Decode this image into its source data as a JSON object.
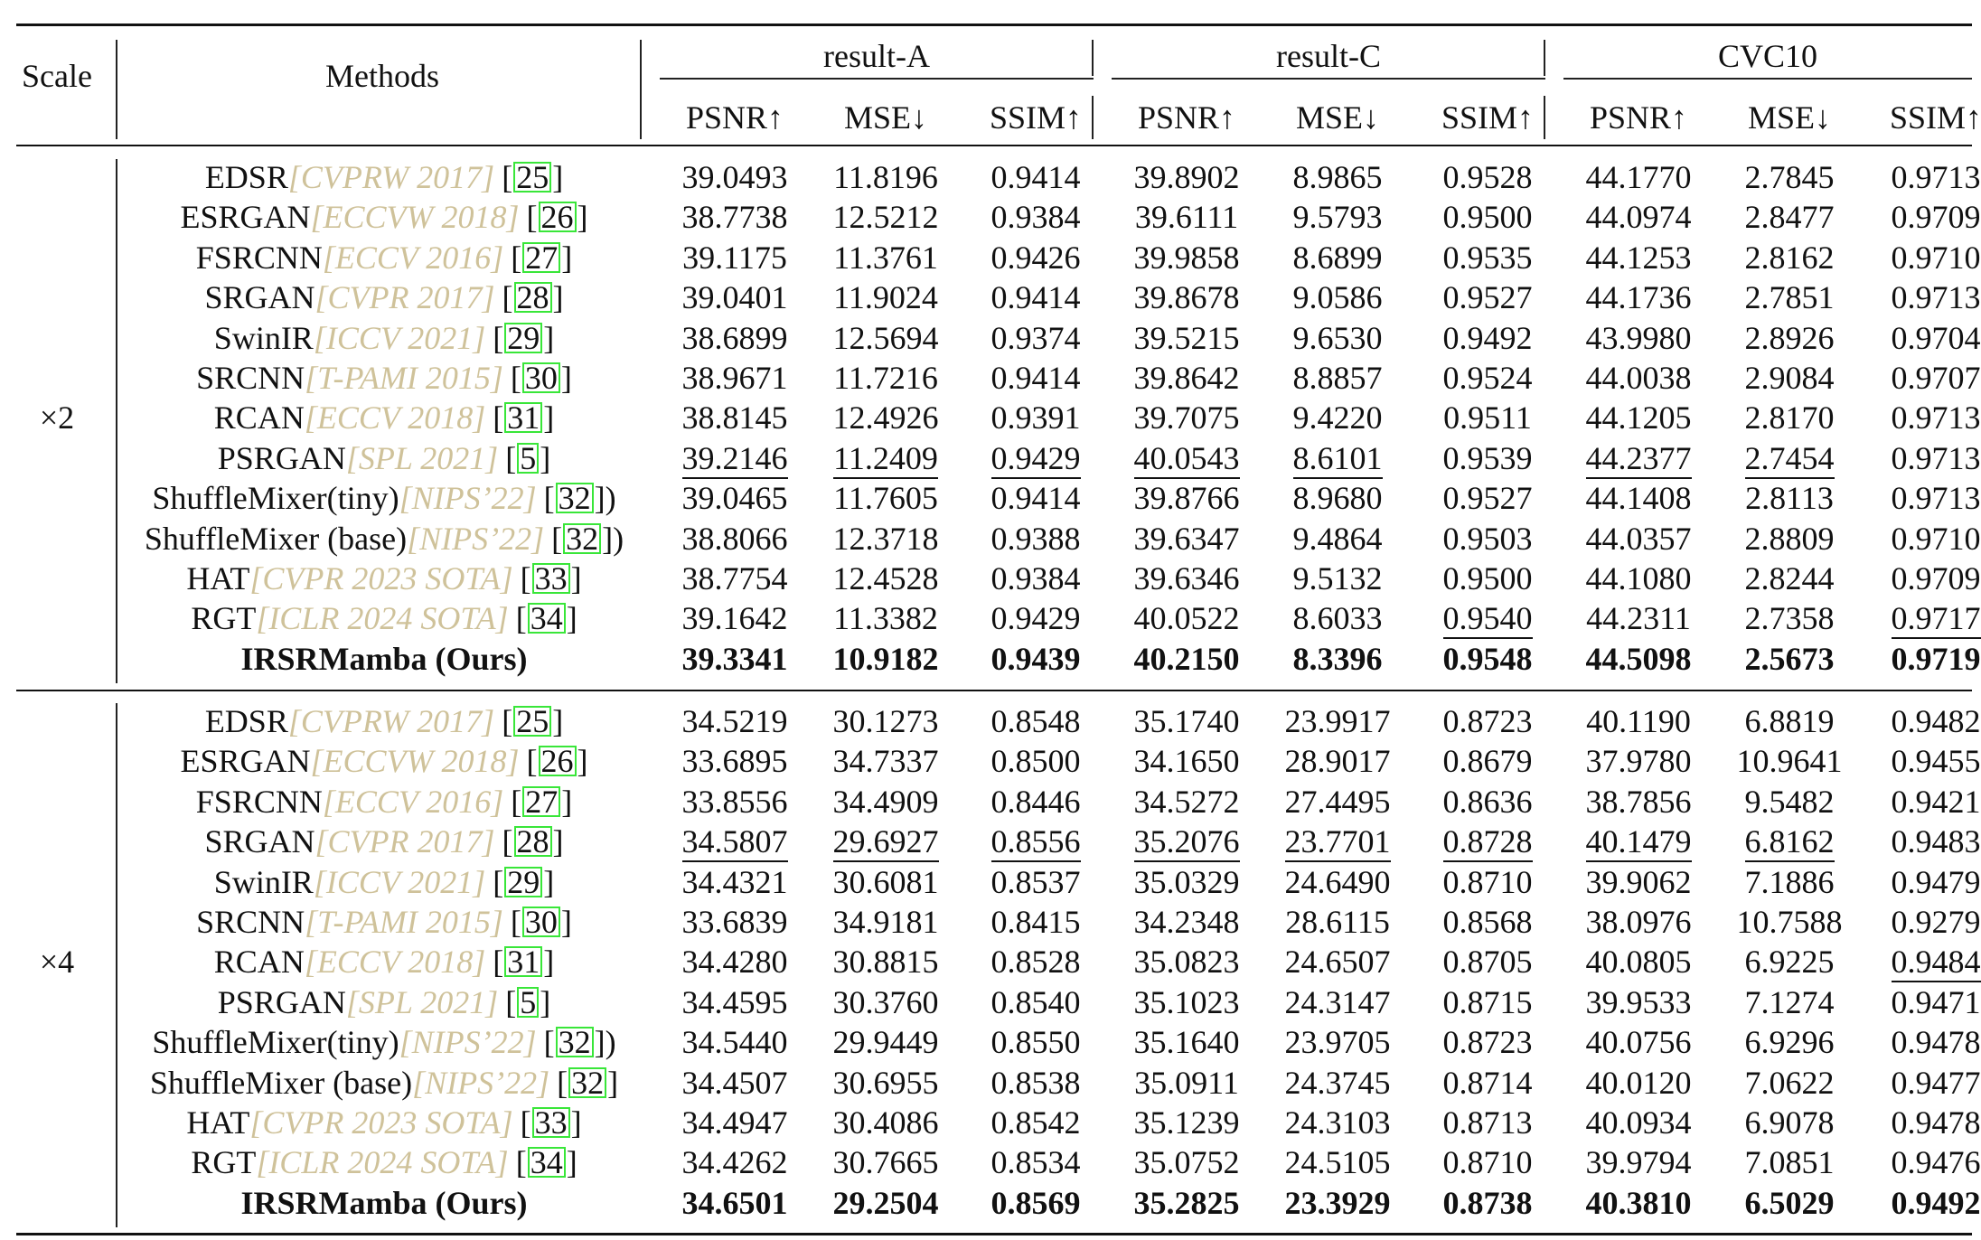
{
  "header": {
    "scale": "Scale",
    "methods": "Methods",
    "groups": [
      "result-A",
      "result-C",
      "CVC10"
    ],
    "metrics": [
      "PSNR↑",
      "MSE↓",
      "SSIM↑"
    ]
  },
  "sections": [
    {
      "scale": "×2",
      "rows": [
        {
          "name": "EDSR",
          "venue": "[CVPRW 2017]",
          "pre": "[",
          "ref": "25",
          "post": "]",
          "values": [
            "39.0493",
            "11.8196",
            "0.9414",
            "39.8902",
            "8.9865",
            "0.9528",
            "44.1770",
            "2.7845",
            "0.9713"
          ]
        },
        {
          "name": "ESRGAN",
          "venue": "[ECCVW 2018]",
          "pre": "[",
          "ref": "26",
          "post": "]",
          "values": [
            "38.7738",
            "12.5212",
            "0.9384",
            "39.6111",
            "9.5793",
            "0.9500",
            "44.0974",
            "2.8477",
            "0.9709"
          ]
        },
        {
          "name": "FSRCNN",
          "venue": "[ECCV 2016]",
          "pre": "[",
          "ref": "27",
          "post": "]",
          "values": [
            "39.1175",
            "11.3761",
            "0.9426",
            "39.9858",
            "8.6899",
            "0.9535",
            "44.1253",
            "2.8162",
            "0.9710"
          ]
        },
        {
          "name": "SRGAN",
          "venue": "[CVPR 2017]",
          "pre": "[",
          "ref": "28",
          "post": "]",
          "values": [
            "39.0401",
            "11.9024",
            "0.9414",
            "39.8678",
            "9.0586",
            "0.9527",
            "44.1736",
            "2.7851",
            "0.9713"
          ]
        },
        {
          "name": "SwinIR",
          "venue": "[ICCV 2021]",
          "pre": "[",
          "ref": "29",
          "post": "]",
          "values": [
            "38.6899",
            "12.5694",
            "0.9374",
            "39.5215",
            "9.6530",
            "0.9492",
            "43.9980",
            "2.8926",
            "0.9704"
          ]
        },
        {
          "name": "SRCNN",
          "venue": "[T-PAMI 2015]",
          "pre": "[",
          "ref": "30",
          "post": "]",
          "values": [
            "38.9671",
            "11.7216",
            "0.9414",
            "39.8642",
            "8.8857",
            "0.9524",
            "44.0038",
            "2.9084",
            "0.9707"
          ]
        },
        {
          "name": "RCAN",
          "venue": "[ECCV 2018]",
          "pre": "[",
          "ref": "31",
          "post": "]",
          "values": [
            "38.8145",
            "12.4926",
            "0.9391",
            "39.7075",
            "9.4220",
            "0.9511",
            "44.1205",
            "2.8170",
            "0.9713"
          ]
        },
        {
          "name": "PSRGAN",
          "venue": "[SPL 2021]",
          "pre": "[",
          "ref": "5",
          "post": "]",
          "values": [
            "39.2146",
            "11.2409",
            "0.9429",
            "40.0543",
            "8.6101",
            "0.9539",
            "44.2377",
            "2.7454",
            "0.9713"
          ]
        },
        {
          "name": "ShuffleMixer(tiny)",
          "venue": "[NIPS’22]",
          "pre": "[",
          "ref": "32",
          "post": "])",
          "values": [
            "39.0465",
            "11.7605",
            "0.9414",
            "39.8766",
            "8.9680",
            "0.9527",
            "44.1408",
            "2.8113",
            "0.9713"
          ]
        },
        {
          "name": "ShuffleMixer (base)",
          "venue": "[NIPS’22]",
          "pre": "[",
          "ref": "32",
          "post": "])",
          "values": [
            "38.8066",
            "12.3718",
            "0.9388",
            "39.6347",
            "9.4864",
            "0.9503",
            "44.0357",
            "2.8809",
            "0.9710"
          ]
        },
        {
          "name": "HAT",
          "venue": "[CVPR 2023 SOTA]",
          "pre": "[",
          "ref": "33",
          "post": "]",
          "values": [
            "38.7754",
            "12.4528",
            "0.9384",
            "39.6346",
            "9.5132",
            "0.9500",
            "44.1080",
            "2.8244",
            "0.9709"
          ]
        },
        {
          "name": "RGT",
          "venue": "[ICLR 2024 SOTA]",
          "pre": "[",
          "ref": "34",
          "post": "]",
          "values": [
            "39.1642",
            "11.3382",
            "0.9429",
            "40.0522",
            "8.6033",
            "0.9540",
            "44.2311",
            "2.7358",
            "0.9717"
          ]
        },
        {
          "name": "IRSRMamba (Ours)",
          "venue": "",
          "pre": "",
          "ref": "",
          "post": "",
          "values": [
            "39.3341",
            "10.9182",
            "0.9439",
            "40.2150",
            "8.3396",
            "0.9548",
            "44.5098",
            "2.5673",
            "0.9719"
          ]
        }
      ]
    },
    {
      "scale": "×4",
      "rows": [
        {
          "name": "EDSR",
          "venue": "[CVPRW 2017]",
          "pre": "[",
          "ref": "25",
          "post": "]",
          "values": [
            "34.5219",
            "30.1273",
            "0.8548",
            "35.1740",
            "23.9917",
            "0.8723",
            "40.1190",
            "6.8819",
            "0.9482"
          ]
        },
        {
          "name": "ESRGAN",
          "venue": "[ECCVW 2018]",
          "pre": "[",
          "ref": "26",
          "post": "]",
          "values": [
            "33.6895",
            "34.7337",
            "0.8500",
            "34.1650",
            "28.9017",
            "0.8679",
            "37.9780",
            "10.9641",
            "0.9455"
          ]
        },
        {
          "name": "FSRCNN",
          "venue": "[ECCV 2016]",
          "pre": "[",
          "ref": "27",
          "post": "]",
          "values": [
            "33.8556",
            "34.4909",
            "0.8446",
            "34.5272",
            "27.4495",
            "0.8636",
            "38.7856",
            "9.5482",
            "0.9421"
          ]
        },
        {
          "name": "SRGAN",
          "venue": "[CVPR 2017]",
          "pre": "[",
          "ref": "28",
          "post": "]",
          "values": [
            "34.5807",
            "29.6927",
            "0.8556",
            "35.2076",
            "23.7701",
            "0.8728",
            "40.1479",
            "6.8162",
            "0.9483"
          ]
        },
        {
          "name": "SwinIR",
          "venue": "[ICCV 2021]",
          "pre": "[",
          "ref": "29",
          "post": "]",
          "values": [
            "34.4321",
            "30.6081",
            "0.8537",
            "35.0329",
            "24.6490",
            "0.8710",
            "39.9062",
            "7.1886",
            "0.9479"
          ]
        },
        {
          "name": "SRCNN",
          "venue": "[T-PAMI 2015]",
          "pre": "[",
          "ref": "30",
          "post": "]",
          "values": [
            "33.6839",
            "34.9181",
            "0.8415",
            "34.2348",
            "28.6115",
            "0.8568",
            "38.0976",
            "10.7588",
            "0.9279"
          ]
        },
        {
          "name": "RCAN",
          "venue": "[ECCV 2018]",
          "pre": "[",
          "ref": "31",
          "post": "]",
          "values": [
            "34.4280",
            "30.8815",
            "0.8528",
            "35.0823",
            "24.6507",
            "0.8705",
            "40.0805",
            "6.9225",
            "0.9484"
          ]
        },
        {
          "name": "PSRGAN",
          "venue": "[SPL 2021]",
          "pre": "[",
          "ref": "5",
          "post": "]",
          "values": [
            "34.4595",
            "30.3760",
            "0.8540",
            "35.1023",
            "24.3147",
            "0.8715",
            "39.9533",
            "7.1274",
            "0.9471"
          ]
        },
        {
          "name": "ShuffleMixer(tiny)",
          "venue": "[NIPS’22]",
          "pre": "[",
          "ref": "32",
          "post": "])",
          "values": [
            "34.5440",
            "29.9449",
            "0.8550",
            "35.1640",
            "23.9705",
            "0.8723",
            "40.0756",
            "6.9296",
            "0.9478"
          ]
        },
        {
          "name": "ShuffleMixer (base)",
          "venue": "[NIPS’22]",
          "pre": "[",
          "ref": "32",
          "post": "]",
          "values": [
            "34.4507",
            "30.6955",
            "0.8538",
            "35.0911",
            "24.3745",
            "0.8714",
            "40.0120",
            "7.0622",
            "0.9477"
          ]
        },
        {
          "name": "HAT",
          "venue": "[CVPR 2023 SOTA]",
          "pre": "[",
          "ref": "33",
          "post": "]",
          "values": [
            "34.4947",
            "30.4086",
            "0.8542",
            "35.1239",
            "24.3103",
            "0.8713",
            "40.0934",
            "6.9078",
            "0.9478"
          ]
        },
        {
          "name": "RGT",
          "venue": "[ICLR 2024 SOTA]",
          "pre": "[",
          "ref": "34",
          "post": "]",
          "values": [
            "34.4262",
            "30.7665",
            "0.8534",
            "35.0752",
            "24.5105",
            "0.8710",
            "39.9794",
            "7.0851",
            "0.9476"
          ]
        },
        {
          "name": "IRSRMamba (Ours)",
          "venue": "",
          "pre": "",
          "ref": "",
          "post": "",
          "values": [
            "34.6501",
            "29.2504",
            "0.8569",
            "35.2825",
            "23.3929",
            "0.8738",
            "40.3810",
            "6.5029",
            "0.9492"
          ]
        }
      ]
    }
  ],
  "emphasis": {
    "bold_rows": [
      [
        0,
        12
      ],
      [
        1,
        12
      ]
    ],
    "underlined_cells": [
      [
        0,
        7,
        0
      ],
      [
        0,
        7,
        1
      ],
      [
        0,
        7,
        2
      ],
      [
        0,
        7,
        3
      ],
      [
        0,
        7,
        4
      ],
      [
        0,
        7,
        6
      ],
      [
        0,
        7,
        7
      ],
      [
        0,
        11,
        5
      ],
      [
        0,
        11,
        8
      ],
      [
        1,
        3,
        0
      ],
      [
        1,
        3,
        1
      ],
      [
        1,
        3,
        2
      ],
      [
        1,
        3,
        3
      ],
      [
        1,
        3,
        4
      ],
      [
        1,
        3,
        5
      ],
      [
        1,
        3,
        6
      ],
      [
        1,
        3,
        7
      ],
      [
        1,
        6,
        8
      ]
    ]
  },
  "colors": {
    "venue": "#cfc29a",
    "ref_box": "#39e639",
    "text": "#111111"
  }
}
